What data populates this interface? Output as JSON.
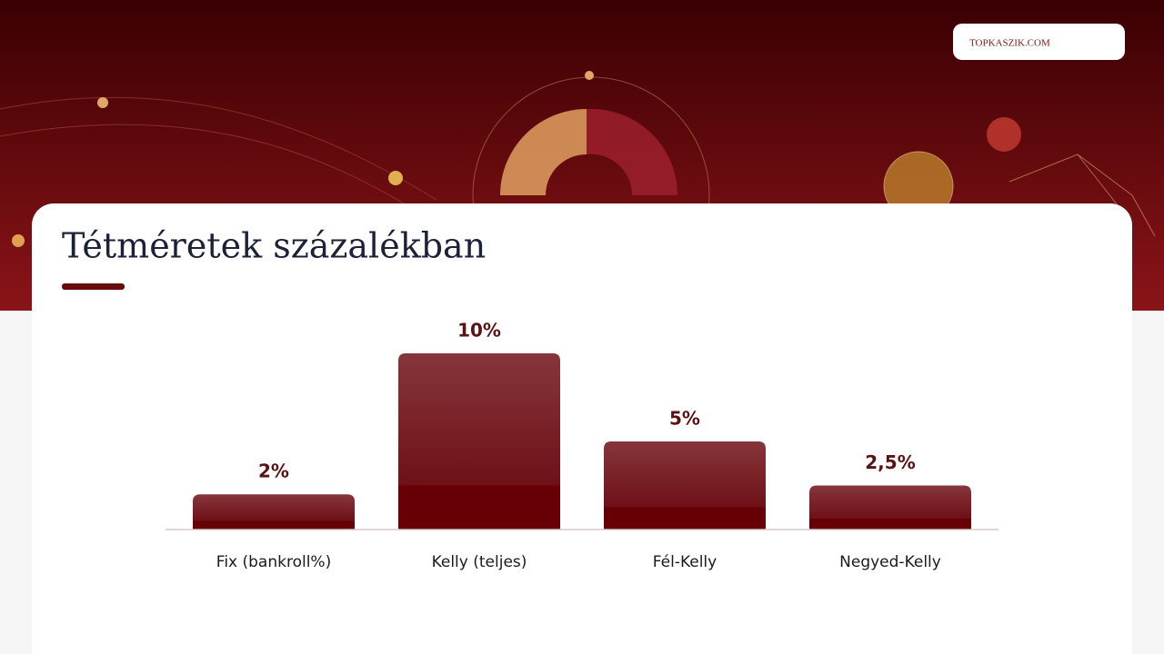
{
  "logo": "TOPKASZIK.COM",
  "chart_data": {
    "type": "bar",
    "title": "Tétméretek százalékban",
    "categories": [
      "Fix (bankroll%)",
      "Kelly (teljes)",
      "Fél-Kelly",
      "Negyed-Kelly"
    ],
    "values": [
      2,
      10,
      5,
      2.5
    ],
    "value_labels": [
      "2%",
      "10%",
      "5%",
      "2,5%"
    ],
    "color": "#7a1a1e"
  }
}
